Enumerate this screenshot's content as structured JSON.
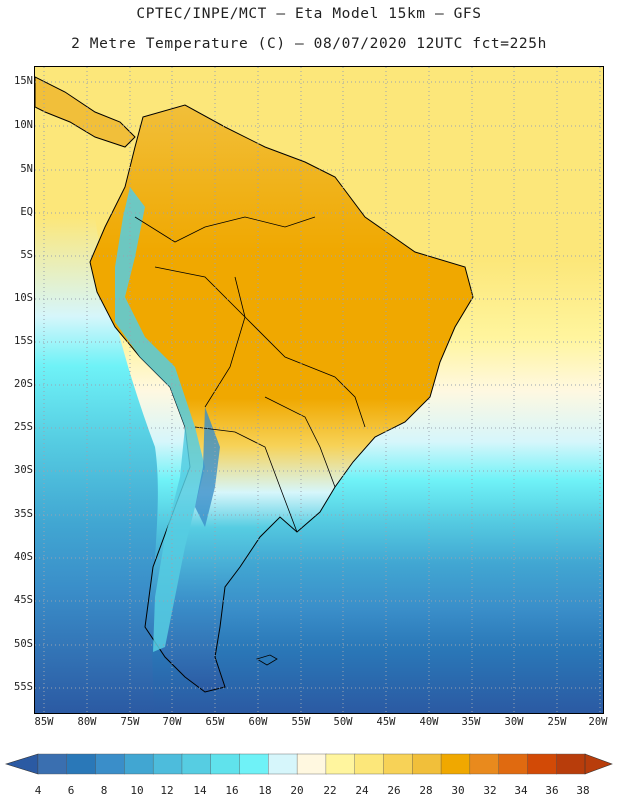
{
  "header": {
    "line1": "CPTEC/INPE/MCT –  Eta Model 15km – GFS",
    "line2": "2 Metre Temperature (C) – 08/07/2020 12UTC fct=225h"
  },
  "axes": {
    "latitude_labels": [
      "15N",
      "10N",
      "5N",
      "EQ",
      "5S",
      "10S",
      "15S",
      "20S",
      "25S",
      "30S",
      "35S",
      "40S",
      "45S",
      "50S",
      "55S"
    ],
    "longitude_labels": [
      "85W",
      "80W",
      "75W",
      "70W",
      "65W",
      "60W",
      "55W",
      "50W",
      "45W",
      "40W",
      "35W",
      "30W",
      "25W",
      "20W"
    ]
  },
  "colorbar": {
    "labels": [
      "4",
      "6",
      "8",
      "10",
      "12",
      "14",
      "16",
      "18",
      "20",
      "22",
      "24",
      "26",
      "28",
      "30",
      "32",
      "34",
      "36",
      "38"
    ],
    "colors": [
      "#3a6fb0",
      "#2a78b8",
      "#3a8ec9",
      "#41a6d2",
      "#4dbcdc",
      "#56cde2",
      "#60e2ec",
      "#6ff2f7",
      "#d6f6fb",
      "#fff8e0",
      "#fff59e",
      "#fce77a",
      "#f7d257",
      "#f1bf3a",
      "#f0a800",
      "#e98a1d",
      "#e06a10",
      "#d24a06",
      "#b83d0b"
    ],
    "end_colors": {
      "low": "#2b5aa3",
      "high": "#b83d0b"
    }
  },
  "map": {
    "grid_color": "#9aa3b0",
    "ocean_cold": "#2b5aa3",
    "ocean_warm": "#fce77a",
    "land_hot": "#f0a800"
  }
}
